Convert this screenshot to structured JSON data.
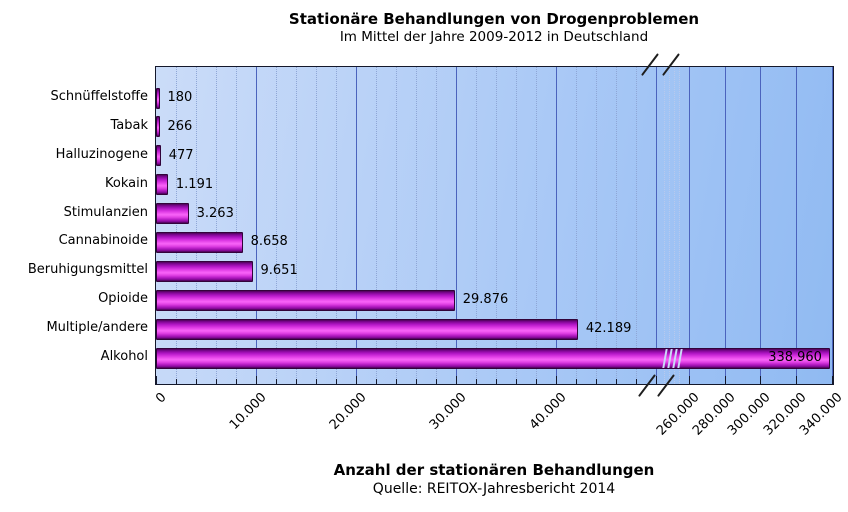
{
  "chart_data": {
    "type": "bar",
    "orientation": "horizontal",
    "title": "Stationäre Behandlungen von Drogenproblemen",
    "subtitle": "Im Mittel der Jahre 2009-2012 in Deutschland",
    "xlabel": "Anzahl der stationären Behandlungen",
    "source": "Quelle: REITOX-Jahresbericht 2014",
    "categories": [
      "Schnüffelstoffe",
      "Tabak",
      "Halluzinogene",
      "Kokain",
      "Stimulanzien",
      "Cannabinoide",
      "Beruhigungsmittel",
      "Opioide",
      "Multiple/andere",
      "Alkohol"
    ],
    "values": [
      180,
      266,
      477,
      1191,
      3263,
      8658,
      9651,
      29876,
      42189,
      338960
    ],
    "value_labels": [
      "180",
      "266",
      "477",
      "1.191",
      "3.263",
      "8.658",
      "9.651",
      "29.876",
      "42.189",
      "338.960"
    ],
    "x_axis": {
      "has_break": true,
      "segment1": {
        "min": 0,
        "max": 50000,
        "major_step": 10000,
        "minor_step": 2000,
        "tick_labels": [
          "0",
          "10.000",
          "20.000",
          "30.000",
          "40.000"
        ]
      },
      "segment2": {
        "min": 260000,
        "max": 340000,
        "major_step": 20000,
        "tick_labels": [
          "260.000",
          "280.000",
          "300.000",
          "320.000",
          "340.000"
        ]
      }
    },
    "grid": "vertical, solid majors with dotted minors",
    "legend": "none",
    "colors": {
      "bar_main": "#d935e2",
      "bar_highlight": "#f863f8",
      "bar_dark": "#4c0356",
      "bar_border": "#32033a",
      "bar_break_stripe": "#ccd9f8",
      "plot_bg_light": "#cbdcf8",
      "plot_bg_dark": "#90baf2",
      "grid_major": "#4b63bd",
      "grid_minor": "#8fa6d6",
      "axis_border": "#14182b",
      "text": "#000000"
    }
  }
}
